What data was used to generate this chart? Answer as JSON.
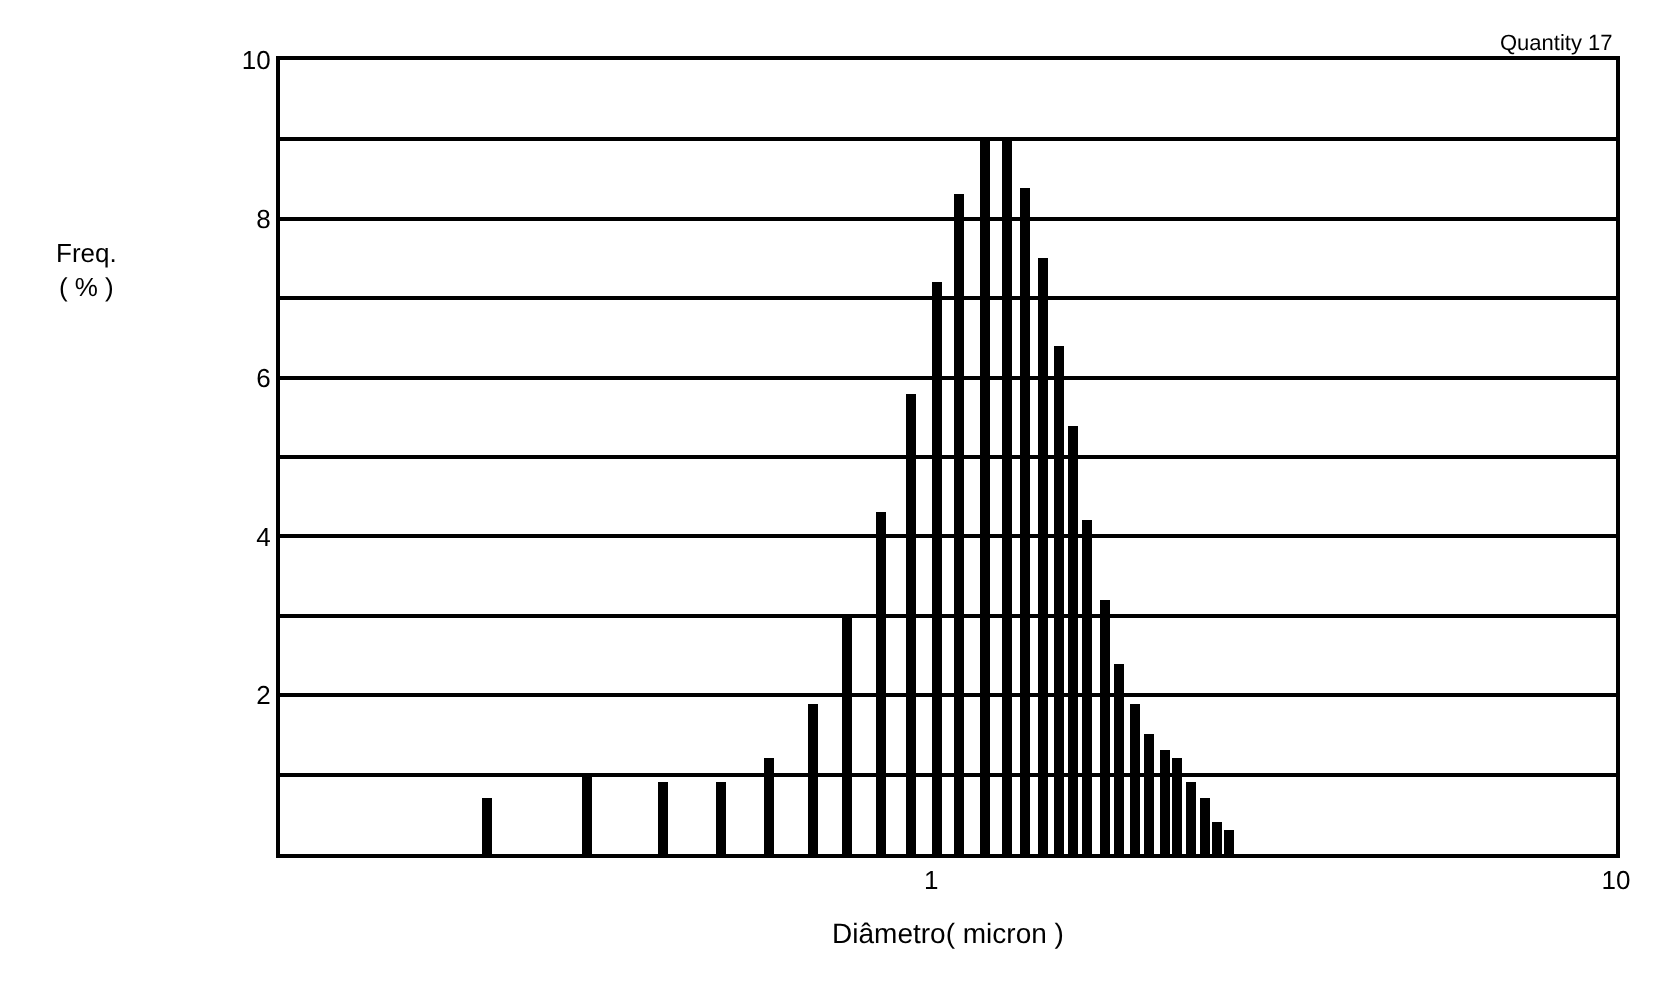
{
  "chart_data": {
    "type": "bar",
    "xlabel": "Diâmetro( micron )",
    "ylabel": "Freq.\n( % )",
    "annotations": [
      "Quantity 17"
    ],
    "x": [
      0.224,
      0.314,
      0.405,
      0.494,
      0.579,
      0.671,
      0.756,
      0.847,
      0.936,
      1.02,
      1.1,
      1.2,
      1.29,
      1.37,
      1.46,
      1.54,
      1.61,
      1.69,
      1.8,
      1.88,
      1.99,
      2.08,
      2.19,
      2.28,
      2.39,
      2.51,
      2.61,
      2.73
    ],
    "values": [
      0.7,
      1.0,
      0.9,
      0.9,
      1.2,
      1.9,
      3.0,
      4.3,
      5.8,
      7.2,
      8.3,
      9.0,
      9.0,
      8.4,
      7.5,
      6.4,
      5.4,
      4.2,
      3.2,
      2.4,
      1.9,
      1.5,
      1.3,
      1.2,
      0.9,
      0.7,
      0.4,
      0.3
    ],
    "color": "#000000",
    "log": "x",
    "xlim": [
      0.112,
      10
    ],
    "xticks": [
      1,
      10
    ],
    "ylim": [
      0,
      10
    ],
    "yticks": [
      {
        "value": 1,
        "label": null
      },
      2,
      {
        "value": 3,
        "label": null
      },
      4,
      {
        "value": 5,
        "label": null
      },
      6,
      {
        "value": 7,
        "label": null
      },
      8,
      {
        "value": 9,
        "label": null
      },
      10
    ],
    "grid": "y"
  }
}
